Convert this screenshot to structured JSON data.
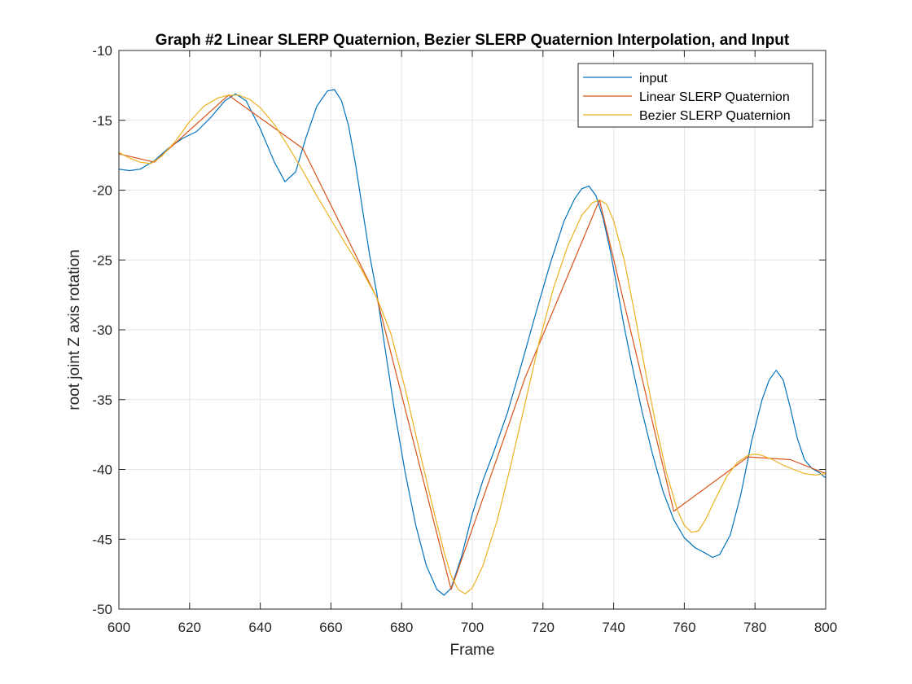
{
  "chart_data": {
    "type": "line",
    "title": "Graph #2 Linear SLERP Quaternion, Bezier SLERP Quaternion Interpolation, and Input",
    "xlabel": "Frame",
    "ylabel": "root joint Z axis rotation",
    "xlim": [
      600,
      800
    ],
    "ylim": [
      -50,
      -10
    ],
    "xticks": [
      600,
      620,
      640,
      660,
      680,
      700,
      720,
      740,
      760,
      780,
      800
    ],
    "yticks": [
      -50,
      -45,
      -40,
      -35,
      -30,
      -25,
      -20,
      -15,
      -10
    ],
    "grid": true,
    "legend_position": "top-right",
    "colors": {
      "input": "#0072BD",
      "linear": "#D95319",
      "bezier": "#EDB120",
      "grid": "#E5E5E5",
      "axis": "#262626"
    },
    "series": [
      {
        "name": "input",
        "color": "#0072BD",
        "x": [
          600,
          603,
          606,
          610,
          614,
          618,
          622,
          626,
          630,
          633,
          636,
          640,
          644,
          647,
          650,
          653,
          656,
          659,
          661,
          663,
          665,
          667,
          669,
          671,
          673,
          675,
          678,
          681,
          684,
          687,
          690,
          692,
          694,
          697,
          700,
          703,
          706,
          710,
          714,
          718,
          722,
          726,
          729,
          731,
          733,
          735,
          737,
          739,
          741,
          743,
          745,
          748,
          751,
          754,
          757,
          760,
          763,
          766,
          768,
          770,
          773,
          776,
          779,
          782,
          784,
          786,
          788,
          790,
          792,
          794,
          796,
          798,
          800
        ],
        "y": [
          -18.5,
          -18.6,
          -18.5,
          -17.9,
          -17.0,
          -16.3,
          -15.8,
          -14.8,
          -13.6,
          -13.1,
          -13.6,
          -15.6,
          -18.0,
          -19.4,
          -18.7,
          -16.2,
          -14.0,
          -12.9,
          -12.8,
          -13.6,
          -15.4,
          -18.2,
          -21.5,
          -24.7,
          -27.4,
          -30.8,
          -35.8,
          -40.2,
          -44.0,
          -46.9,
          -48.6,
          -49.0,
          -48.5,
          -46.2,
          -43.2,
          -40.8,
          -38.8,
          -35.9,
          -32.4,
          -28.8,
          -25.3,
          -22.2,
          -20.6,
          -19.9,
          -19.7,
          -20.4,
          -22.0,
          -24.3,
          -27.0,
          -29.8,
          -32.3,
          -35.8,
          -38.9,
          -41.6,
          -43.6,
          -44.9,
          -45.6,
          -46.0,
          -46.3,
          -46.1,
          -44.7,
          -41.8,
          -38.0,
          -35.0,
          -33.6,
          -32.9,
          -33.6,
          -35.6,
          -37.8,
          -39.3,
          -39.9,
          -40.2,
          -40.6
        ]
      },
      {
        "name": "Linear SLERP Quaternion",
        "color": "#D95319",
        "x": [
          600,
          610,
          631,
          652,
          673,
          694,
          715,
          736,
          757,
          778,
          790,
          800
        ],
        "y": [
          -17.4,
          -18.0,
          -13.2,
          -17.0,
          -27.7,
          -48.6,
          -33.4,
          -20.7,
          -43.0,
          -39.1,
          -39.3,
          -40.3
        ]
      },
      {
        "name": "Bezier SLERP Quaternion",
        "color": "#EDB120",
        "x": [
          600,
          603,
          606,
          609,
          612,
          616,
          620,
          624,
          628,
          631,
          634,
          637,
          640,
          644,
          648,
          652,
          656,
          660,
          664,
          668,
          673,
          677,
          681,
          685,
          689,
          692,
          694,
          696,
          698,
          700,
          703,
          707,
          711,
          715,
          719,
          723,
          727,
          731,
          734,
          736,
          738,
          740,
          743,
          746,
          749,
          752,
          755,
          758,
          760,
          762,
          764,
          766,
          769,
          772,
          775,
          778,
          780,
          782,
          785,
          788,
          791,
          794,
          797,
          800
        ],
        "y": [
          -17.3,
          -17.7,
          -18.0,
          -18.1,
          -17.6,
          -16.5,
          -15.1,
          -14.0,
          -13.4,
          -13.2,
          -13.2,
          -13.5,
          -14.1,
          -15.3,
          -16.9,
          -18.6,
          -20.4,
          -22.1,
          -23.8,
          -25.4,
          -27.7,
          -30.3,
          -34.2,
          -38.6,
          -42.9,
          -45.9,
          -47.6,
          -48.6,
          -48.9,
          -48.5,
          -46.9,
          -43.7,
          -39.6,
          -35.2,
          -30.8,
          -27.0,
          -24.0,
          -21.8,
          -20.9,
          -20.7,
          -21.0,
          -22.2,
          -25.0,
          -28.9,
          -33.0,
          -36.9,
          -40.3,
          -42.9,
          -44.0,
          -44.5,
          -44.4,
          -43.6,
          -42.0,
          -40.5,
          -39.5,
          -39.0,
          -38.9,
          -39.0,
          -39.3,
          -39.7,
          -40.0,
          -40.3,
          -40.4,
          -40.3
        ]
      }
    ]
  }
}
